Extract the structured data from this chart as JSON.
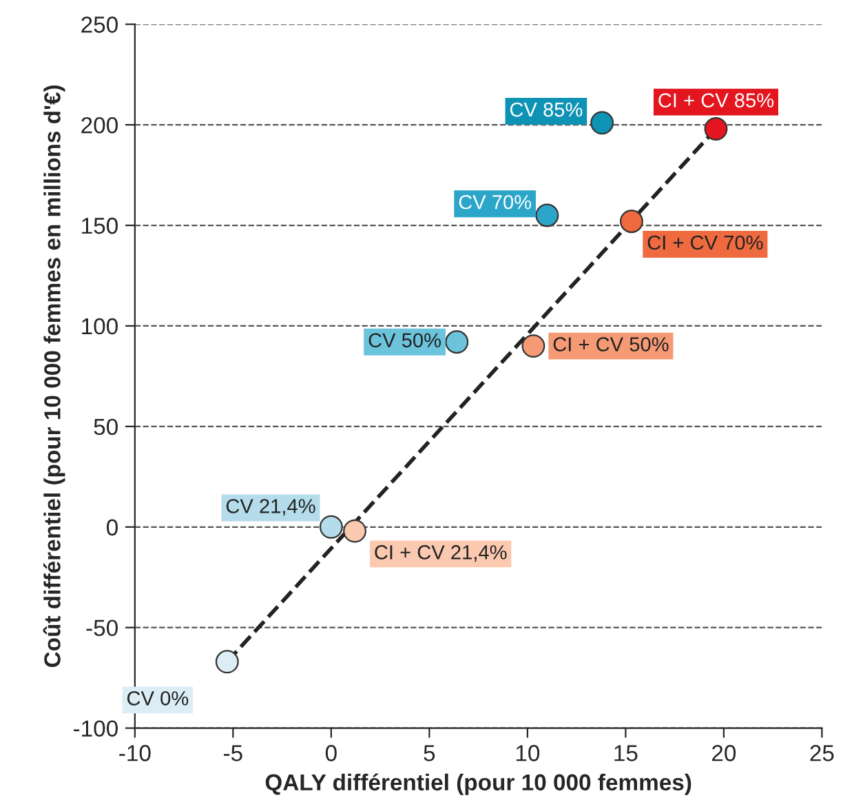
{
  "chart_data": {
    "type": "scatter",
    "xlabel": "QALY différentiel (pour 10 000 femmes)",
    "ylabel": "Coût différentiel (pour 10 000 femmes en millions d'€)",
    "xlim": [
      -10,
      25
    ],
    "xticks": [
      -10,
      -5,
      0,
      5,
      10,
      15,
      20,
      25
    ],
    "ylim": [
      -100,
      250
    ],
    "yticks": [
      -100,
      -50,
      0,
      50,
      100,
      150,
      200,
      250
    ],
    "grid": "y",
    "marker": "circle",
    "series": [
      {
        "type": "line",
        "line_style": "dashed",
        "marker": "none",
        "color": "#222222",
        "x": [
          -5.3,
          19.6
        ],
        "values": [
          -67,
          198
        ]
      },
      {
        "name": "CV 0%",
        "color": "#dcedf5",
        "x": [
          -5.3
        ],
        "values": [
          -67
        ]
      },
      {
        "name": "CV 21,4%",
        "color": "#b5dcea",
        "x": [
          0
        ],
        "values": [
          0
        ]
      },
      {
        "name": "CV 50%",
        "color": "#6cc3dc",
        "x": [
          6.4
        ],
        "values": [
          92
        ]
      },
      {
        "name": "CV 70%",
        "color": "#2ca6c8",
        "x": [
          11.0
        ],
        "values": [
          155
        ]
      },
      {
        "name": "CV 85%",
        "color": "#0f93b5",
        "x": [
          13.8
        ],
        "values": [
          201
        ]
      },
      {
        "name": "CI + CV 21,4%",
        "color": "#fbc9b0",
        "x": [
          1.2
        ],
        "values": [
          -2
        ]
      },
      {
        "name": "CI + CV 50%",
        "color": "#f59a74",
        "x": [
          10.3
        ],
        "values": [
          90
        ]
      },
      {
        "name": "CI + CV 70%",
        "color": "#ef6a3f",
        "x": [
          15.3
        ],
        "values": [
          152
        ]
      },
      {
        "name": "CI + CV 85%",
        "color": "#e3161f",
        "x": [
          19.6
        ],
        "values": [
          198
        ]
      }
    ]
  }
}
